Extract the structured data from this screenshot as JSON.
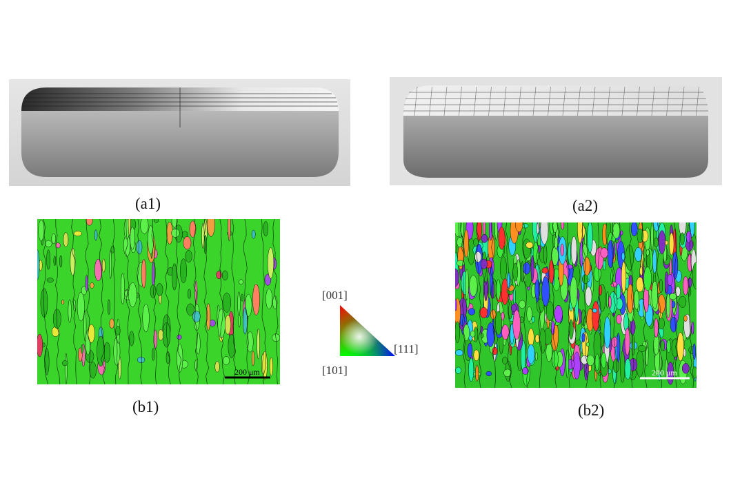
{
  "figure": {
    "panels": [
      {
        "id": "a1",
        "caption": "(a1)",
        "kind": "render",
        "scan_strategy": "unidirectional lines"
      },
      {
        "id": "a2",
        "caption": "(a2)",
        "kind": "render",
        "scan_strategy": "cross-hatched grid"
      },
      {
        "id": "b1",
        "caption": "(b1)",
        "kind": "ebsd_map",
        "scale_bar": "200 μm",
        "dominant_color": "#35e02a"
      },
      {
        "id": "b2",
        "caption": "(b2)",
        "kind": "ebsd_map",
        "scale_bar": "200 μm",
        "dominant_color": "#35e02a"
      }
    ],
    "ipf_legend": {
      "top": "[001]",
      "left": "[101]",
      "right": "[111]",
      "colors": {
        "top": "#ff0000",
        "left": "#00ff00",
        "right": "#0000ff"
      }
    }
  }
}
